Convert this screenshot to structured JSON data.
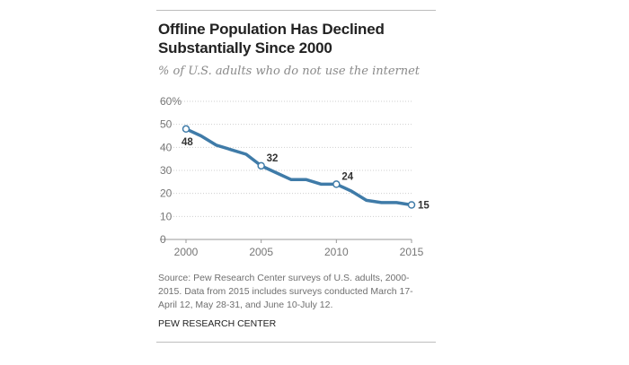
{
  "title": "Offline Population Has Declined Substantially Since 2000",
  "subtitle": "% of U.S. adults who do not use the internet",
  "source_note": "Source: Pew Research Center surveys of U.S. adults, 2000-2015. Data from 2015 includes surveys conducted March 17-April 12, May 28-31, and June 10-July 12.",
  "credit": "PEW RESEARCH CENTER",
  "colors": {
    "line": "#3f7ba8",
    "grid": "#cfcfcf",
    "axis_text": "#777777",
    "label_text": "#333333"
  },
  "chart_data": {
    "type": "line",
    "title": "Offline Population Has Declined Substantially Since 2000",
    "subtitle": "% of U.S. adults who do not use the internet",
    "xlabel": "",
    "ylabel": "",
    "x": [
      2000,
      2001,
      2002,
      2003,
      2004,
      2005,
      2006,
      2007,
      2008,
      2009,
      2010,
      2011,
      2012,
      2013,
      2014,
      2015
    ],
    "series": [
      {
        "values": [
          48,
          45,
          41,
          39,
          37,
          32,
          29,
          26,
          26,
          24,
          24,
          21,
          17,
          16,
          16,
          15
        ]
      }
    ],
    "ylim": [
      0,
      60
    ],
    "xlim": [
      2000,
      2015
    ],
    "y_ticks": [
      0,
      10,
      20,
      30,
      40,
      50,
      60
    ],
    "y_tick_labels": [
      "0",
      "10",
      "20",
      "30",
      "40",
      "50",
      "60%"
    ],
    "x_ticks": [
      2000,
      2005,
      2010,
      2015
    ],
    "x_tick_labels": [
      "2000",
      "2005",
      "2010",
      "2015"
    ],
    "annotated_points": [
      {
        "x": 2000,
        "y": 48,
        "label": "48"
      },
      {
        "x": 2005,
        "y": 32,
        "label": "32"
      },
      {
        "x": 2010,
        "y": 24,
        "label": "24"
      },
      {
        "x": 2015,
        "y": 15,
        "label": "15"
      }
    ],
    "grid": true,
    "legend": "none"
  }
}
